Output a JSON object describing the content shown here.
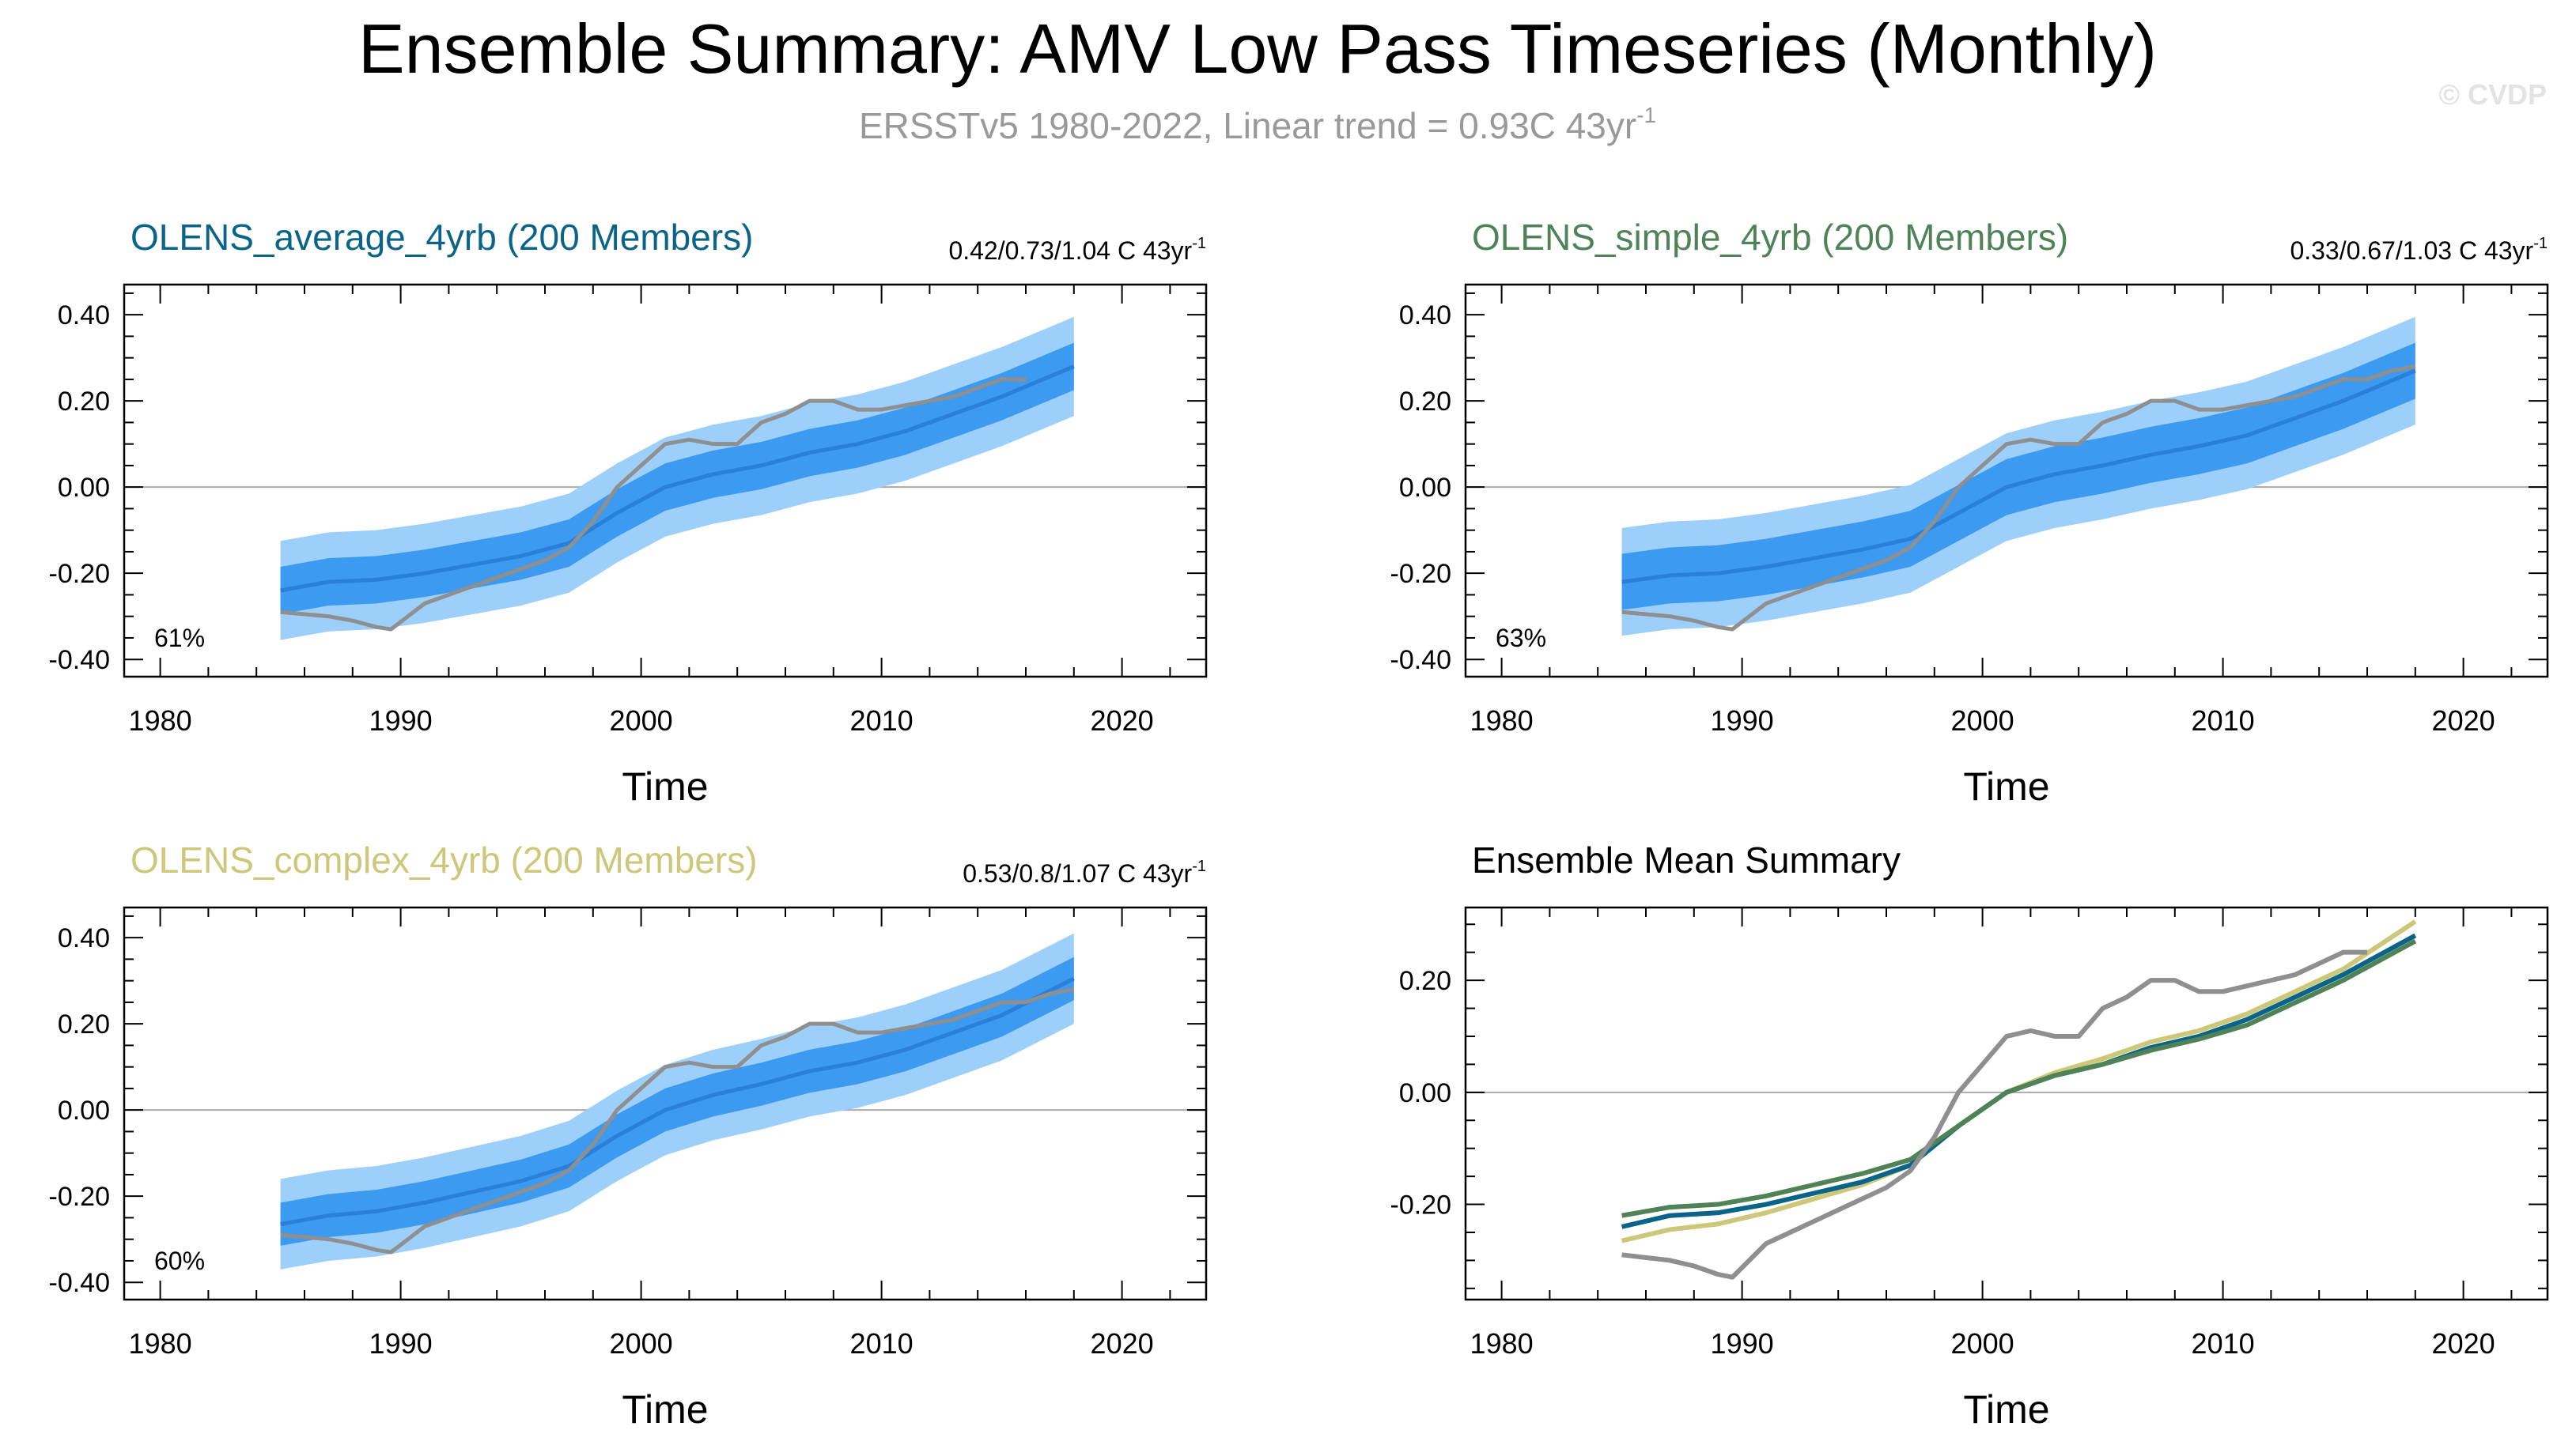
{
  "page": {
    "title": "Ensemble Summary: AMV Low Pass Timeseries (Monthly)",
    "subtitle_main": "ERSSTv5 1980-2022, Linear trend = 0.93C 43yr",
    "subtitle_exp": "-1",
    "watermark": "© CVDP"
  },
  "colors": {
    "obs": "#8f8f8f",
    "outer_band": "#9ccffa",
    "inner_band": "#3c9af0",
    "mean_line": "#2a7fd8",
    "average": "#0a6489",
    "simple": "#4f8357",
    "complex": "#cdc77a",
    "title": "#000000",
    "subtitle": "#999999",
    "zero_line": "#aaaaaa"
  },
  "chart_data": [
    {
      "type": "line",
      "id": "average",
      "title": "OLENS_average_4yrb (200 Members)",
      "title_color": "#0a6489",
      "trend_text": "0.42/0.73/1.04 C 43yr",
      "trend_exp": "-1",
      "percent_label": "61%",
      "xlabel": "Time",
      "ylabel": "",
      "xlim": [
        1978.5,
        2023.5
      ],
      "ylim": [
        -0.44,
        0.47
      ],
      "xticks": [
        1980,
        1990,
        2000,
        2010,
        2020
      ],
      "xtick_labels": [
        "1980",
        "1990",
        "2000",
        "2010",
        "2020"
      ],
      "yticks": [
        -0.4,
        -0.2,
        0.0,
        0.2,
        0.4
      ],
      "ytick_labels": [
        "-0.40",
        "-0.20",
        "0.00",
        "0.20",
        "0.40"
      ],
      "x": [
        1985,
        1987,
        1989,
        1991,
        1993,
        1995,
        1997,
        1999,
        2001,
        2003,
        2005,
        2007,
        2009,
        2011,
        2013,
        2015,
        2018
      ],
      "mean": [
        -0.24,
        -0.22,
        -0.215,
        -0.2,
        -0.18,
        -0.16,
        -0.13,
        -0.06,
        0.0,
        0.03,
        0.05,
        0.08,
        0.1,
        0.13,
        0.17,
        0.21,
        0.28
      ],
      "inner_half": 0.055,
      "outer_half": 0.115,
      "obs_x": [
        1985,
        1986,
        1987,
        1988,
        1989,
        1989.6,
        1990.3,
        1991,
        1992,
        1993,
        1994,
        1995,
        1996,
        1997,
        1998,
        1999,
        2000,
        2001,
        2002,
        2003,
        2004,
        2005,
        2006,
        2007,
        2008,
        2009,
        2010,
        2011,
        2012,
        2013,
        2014,
        2015,
        2016
      ],
      "obs_y": [
        -0.29,
        -0.295,
        -0.3,
        -0.31,
        -0.325,
        -0.33,
        -0.3,
        -0.27,
        -0.25,
        -0.23,
        -0.21,
        -0.19,
        -0.17,
        -0.14,
        -0.08,
        0.0,
        0.05,
        0.1,
        0.11,
        0.1,
        0.1,
        0.15,
        0.17,
        0.2,
        0.2,
        0.18,
        0.18,
        0.19,
        0.2,
        0.21,
        0.23,
        0.25,
        0.25
      ],
      "show_band": true
    },
    {
      "type": "line",
      "id": "simple",
      "title": "OLENS_simple_4yrb (200 Members)",
      "title_color": "#4f8357",
      "trend_text": "0.33/0.67/1.03 C 43yr",
      "trend_exp": "-1",
      "percent_label": "63%",
      "xlabel": "Time",
      "ylabel": "",
      "xlim": [
        1978.5,
        2023.5
      ],
      "ylim": [
        -0.44,
        0.47
      ],
      "xticks": [
        1980,
        1990,
        2000,
        2010,
        2020
      ],
      "xtick_labels": [
        "1980",
        "1990",
        "2000",
        "2010",
        "2020"
      ],
      "yticks": [
        -0.4,
        -0.2,
        0.0,
        0.2,
        0.4
      ],
      "ytick_labels": [
        "-0.40",
        "-0.20",
        "0.00",
        "0.20",
        "0.40"
      ],
      "x": [
        1985,
        1987,
        1989,
        1991,
        1993,
        1995,
        1997,
        1999,
        2001,
        2003,
        2005,
        2007,
        2009,
        2011,
        2013,
        2015,
        2018
      ],
      "mean": [
        -0.22,
        -0.205,
        -0.2,
        -0.185,
        -0.165,
        -0.145,
        -0.12,
        -0.06,
        0.0,
        0.03,
        0.05,
        0.075,
        0.095,
        0.12,
        0.16,
        0.2,
        0.27
      ],
      "inner_half": 0.065,
      "outer_half": 0.125,
      "obs_x": [
        1985,
        1986,
        1987,
        1988,
        1989,
        1989.6,
        1990.3,
        1991,
        1992,
        1993,
        1994,
        1995,
        1996,
        1997,
        1998,
        1999,
        2000,
        2001,
        2002,
        2003,
        2004,
        2005,
        2006,
        2007,
        2008,
        2009,
        2010,
        2011,
        2012,
        2013,
        2014,
        2015,
        2016,
        2017,
        2018
      ],
      "obs_y": [
        -0.29,
        -0.295,
        -0.3,
        -0.31,
        -0.325,
        -0.33,
        -0.3,
        -0.27,
        -0.25,
        -0.23,
        -0.21,
        -0.19,
        -0.17,
        -0.14,
        -0.08,
        0.0,
        0.05,
        0.1,
        0.11,
        0.1,
        0.1,
        0.15,
        0.17,
        0.2,
        0.2,
        0.18,
        0.18,
        0.19,
        0.2,
        0.21,
        0.23,
        0.25,
        0.25,
        0.27,
        0.28
      ],
      "show_band": true
    },
    {
      "type": "line",
      "id": "complex",
      "title": "OLENS_complex_4yrb (200 Members)",
      "title_color": "#cdc77a",
      "trend_text": "0.53/0.8/1.07 C 43yr",
      "trend_exp": "-1",
      "percent_label": "60%",
      "xlabel": "Time",
      "ylabel": "",
      "xlim": [
        1978.5,
        2023.5
      ],
      "ylim": [
        -0.44,
        0.47
      ],
      "xticks": [
        1980,
        1990,
        2000,
        2010,
        2020
      ],
      "xtick_labels": [
        "1980",
        "1990",
        "2000",
        "2010",
        "2020"
      ],
      "yticks": [
        -0.4,
        -0.2,
        0.0,
        0.2,
        0.4
      ],
      "ytick_labels": [
        "-0.40",
        "-0.20",
        "0.00",
        "0.20",
        "0.40"
      ],
      "x": [
        1985,
        1987,
        1989,
        1991,
        1993,
        1995,
        1997,
        1999,
        2001,
        2003,
        2005,
        2007,
        2009,
        2011,
        2013,
        2015,
        2018
      ],
      "mean": [
        -0.265,
        -0.245,
        -0.235,
        -0.215,
        -0.19,
        -0.165,
        -0.13,
        -0.06,
        0.0,
        0.035,
        0.06,
        0.09,
        0.11,
        0.14,
        0.18,
        0.22,
        0.305
      ],
      "inner_half": 0.05,
      "outer_half": 0.105,
      "obs_x": [
        1985,
        1986,
        1987,
        1988,
        1989,
        1989.6,
        1990.3,
        1991,
        1992,
        1993,
        1994,
        1995,
        1996,
        1997,
        1998,
        1999,
        2000,
        2001,
        2002,
        2003,
        2004,
        2005,
        2006,
        2007,
        2008,
        2009,
        2010,
        2011,
        2012,
        2013,
        2014,
        2015,
        2016,
        2017,
        2018
      ],
      "obs_y": [
        -0.29,
        -0.295,
        -0.3,
        -0.31,
        -0.325,
        -0.33,
        -0.3,
        -0.27,
        -0.25,
        -0.23,
        -0.21,
        -0.19,
        -0.17,
        -0.14,
        -0.08,
        0.0,
        0.05,
        0.1,
        0.11,
        0.1,
        0.1,
        0.15,
        0.17,
        0.2,
        0.2,
        0.18,
        0.18,
        0.19,
        0.2,
        0.21,
        0.23,
        0.25,
        0.25,
        0.27,
        0.28
      ],
      "show_band": true
    },
    {
      "type": "line",
      "id": "ensemble-mean",
      "title": "Ensemble Mean Summary",
      "title_color": "#000000",
      "xlabel": "Time",
      "ylabel": "",
      "xlim": [
        1978.5,
        2023.5
      ],
      "ylim": [
        -0.37,
        0.33
      ],
      "xticks": [
        1980,
        1990,
        2000,
        2010,
        2020
      ],
      "xtick_labels": [
        "1980",
        "1990",
        "2000",
        "2010",
        "2020"
      ],
      "yticks": [
        -0.2,
        0.0,
        0.2
      ],
      "ytick_labels": [
        "-0.20",
        "0.00",
        "0.20"
      ],
      "show_band": false,
      "series": [
        {
          "name": "OLENS_complex_4yrb",
          "color": "#cdc77a",
          "x": [
            1985,
            1987,
            1989,
            1991,
            1993,
            1995,
            1997,
            1999,
            2001,
            2003,
            2005,
            2007,
            2009,
            2011,
            2013,
            2015,
            2018
          ],
          "values": [
            -0.265,
            -0.245,
            -0.235,
            -0.215,
            -0.19,
            -0.165,
            -0.13,
            -0.06,
            0.0,
            0.035,
            0.06,
            0.09,
            0.11,
            0.14,
            0.18,
            0.22,
            0.305
          ]
        },
        {
          "name": "OLENS_average_4yrb",
          "color": "#0a6489",
          "x": [
            1985,
            1987,
            1989,
            1991,
            1993,
            1995,
            1997,
            1999,
            2001,
            2003,
            2005,
            2007,
            2009,
            2011,
            2013,
            2015,
            2018
          ],
          "values": [
            -0.24,
            -0.22,
            -0.215,
            -0.2,
            -0.18,
            -0.16,
            -0.13,
            -0.06,
            0.0,
            0.03,
            0.05,
            0.08,
            0.1,
            0.13,
            0.17,
            0.21,
            0.28
          ]
        },
        {
          "name": "OLENS_simple_4yrb",
          "color": "#4f8357",
          "x": [
            1985,
            1987,
            1989,
            1991,
            1993,
            1995,
            1997,
            1999,
            2001,
            2003,
            2005,
            2007,
            2009,
            2011,
            2013,
            2015,
            2018
          ],
          "values": [
            -0.22,
            -0.205,
            -0.2,
            -0.185,
            -0.165,
            -0.145,
            -0.12,
            -0.06,
            0.0,
            0.03,
            0.05,
            0.075,
            0.095,
            0.12,
            0.16,
            0.2,
            0.27
          ]
        },
        {
          "name": "ERSSTv5",
          "color": "#8f8f8f",
          "x": [
            1985,
            1986,
            1987,
            1988,
            1989,
            1989.6,
            1990.3,
            1991,
            1992,
            1993,
            1994,
            1995,
            1996,
            1997,
            1998,
            1999,
            2000,
            2001,
            2002,
            2003,
            2004,
            2005,
            2006,
            2007,
            2008,
            2009,
            2010,
            2011,
            2012,
            2013,
            2014,
            2015,
            2016
          ],
          "values": [
            -0.29,
            -0.295,
            -0.3,
            -0.31,
            -0.325,
            -0.33,
            -0.3,
            -0.27,
            -0.25,
            -0.23,
            -0.21,
            -0.19,
            -0.17,
            -0.14,
            -0.08,
            0.0,
            0.05,
            0.1,
            0.11,
            0.1,
            0.1,
            0.15,
            0.17,
            0.2,
            0.2,
            0.18,
            0.18,
            0.19,
            0.2,
            0.21,
            0.23,
            0.25,
            0.25
          ]
        }
      ]
    }
  ]
}
